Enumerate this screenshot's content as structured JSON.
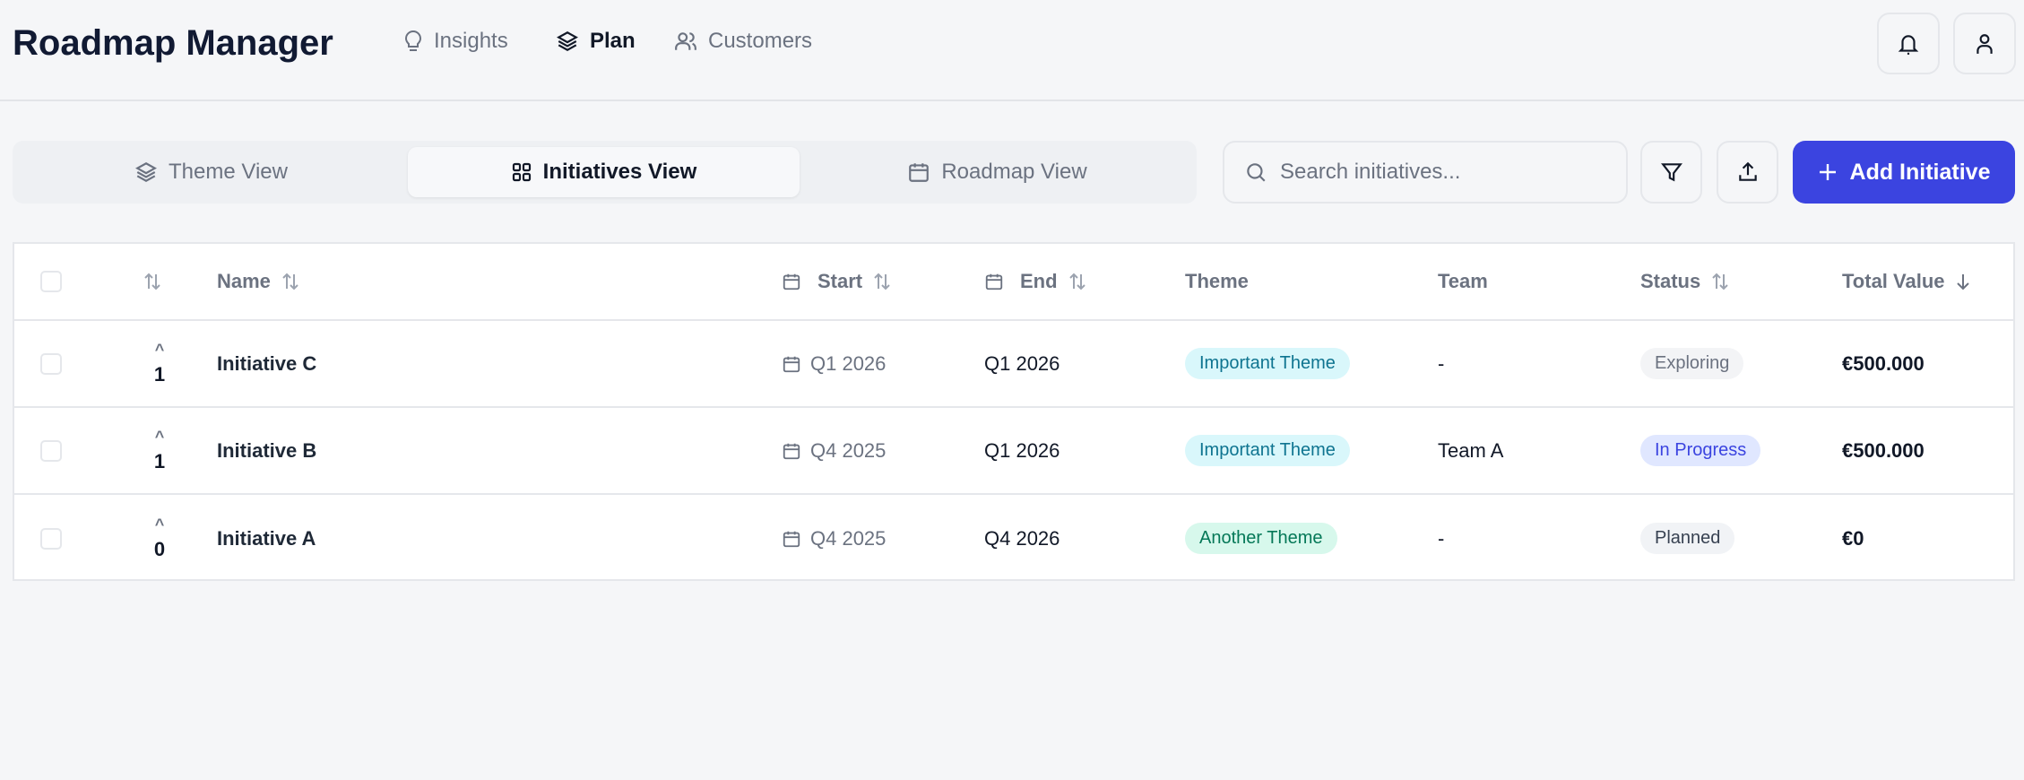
{
  "header": {
    "title": "Roadmap Manager",
    "nav": [
      {
        "label": "Insights",
        "icon": "lightbulb-icon"
      },
      {
        "label": "Plan",
        "icon": "layers-icon",
        "active": true
      },
      {
        "label": "Customers",
        "icon": "users-icon"
      }
    ]
  },
  "views": {
    "tabs": [
      {
        "label": "Theme View",
        "icon": "layers-icon"
      },
      {
        "label": "Initiatives View",
        "icon": "grid-icon",
        "active": true
      },
      {
        "label": "Roadmap View",
        "icon": "calendar-icon"
      }
    ]
  },
  "toolbar": {
    "search_placeholder": "Search initiatives...",
    "search_value": "",
    "add_label": "Add Initiative",
    "accent": "#3b44e0"
  },
  "table": {
    "headers": {
      "name": "Name",
      "start": "Start",
      "end": "End",
      "theme": "Theme",
      "team": "Team",
      "status": "Status",
      "total_value": "Total Value"
    },
    "rows": [
      {
        "votes": "1",
        "name": "Initiative C",
        "start": "Q1 2026",
        "end": "Q1 2026",
        "theme": "Important Theme",
        "team": "-",
        "status": "Exploring",
        "total_value": "€500.000"
      },
      {
        "votes": "1",
        "name": "Initiative B",
        "start": "Q4 2025",
        "end": "Q1 2026",
        "theme": "Important Theme",
        "team": "Team A",
        "status": "In Progress",
        "total_value": "€500.000"
      },
      {
        "votes": "0",
        "name": "Initiative A",
        "start": "Q4 2025",
        "end": "Q4 2026",
        "theme": "Another Theme",
        "team": "-",
        "status": "Planned",
        "total_value": "€0"
      }
    ]
  },
  "colors": {
    "theme_important_bg": "#d9f7fb",
    "theme_important_fg": "#0e7490",
    "theme_another_bg": "#d7f8ec",
    "theme_another_fg": "#047857",
    "status_exploring_bg": "#f3f4f6",
    "status_exploring_fg": "#6b7280",
    "status_inprogress_bg": "#e0e7ff",
    "status_inprogress_fg": "#3b44e0",
    "status_planned_bg": "#f1f3f6",
    "status_planned_fg": "#374151"
  }
}
